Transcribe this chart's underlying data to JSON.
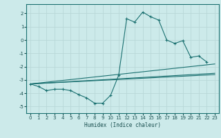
{
  "xlabel": "Humidex (Indice chaleur)",
  "bg_color": "#cceaea",
  "grid_color": "#b8d8d8",
  "line_color": "#1a7070",
  "xlim": [
    -0.5,
    23.5
  ],
  "ylim": [
    -5.5,
    2.7
  ],
  "yticks": [
    -5,
    -4,
    -3,
    -2,
    -1,
    0,
    1,
    2
  ],
  "xticks": [
    0,
    1,
    2,
    3,
    4,
    5,
    6,
    7,
    8,
    9,
    10,
    11,
    12,
    13,
    14,
    15,
    16,
    17,
    18,
    19,
    20,
    21,
    22,
    23
  ],
  "main_curve": {
    "x": [
      0,
      1,
      2,
      3,
      4,
      5,
      6,
      7,
      8,
      9,
      10,
      11,
      12,
      13,
      14,
      15,
      16,
      17,
      18,
      19,
      20,
      21,
      22
    ],
    "y": [
      -3.3,
      -3.5,
      -3.8,
      -3.7,
      -3.7,
      -3.8,
      -4.1,
      -4.35,
      -4.75,
      -4.75,
      -4.15,
      -2.65,
      1.6,
      1.35,
      2.1,
      1.75,
      1.5,
      0.0,
      -0.25,
      -0.05,
      -1.3,
      -1.2,
      -1.65
    ]
  },
  "trend_lines": [
    {
      "x": [
        0,
        23
      ],
      "y": [
        -3.3,
        -2.5
      ]
    },
    {
      "x": [
        0,
        23
      ],
      "y": [
        -3.3,
        -1.8
      ]
    },
    {
      "x": [
        0,
        23
      ],
      "y": [
        -3.3,
        -2.6
      ]
    }
  ]
}
